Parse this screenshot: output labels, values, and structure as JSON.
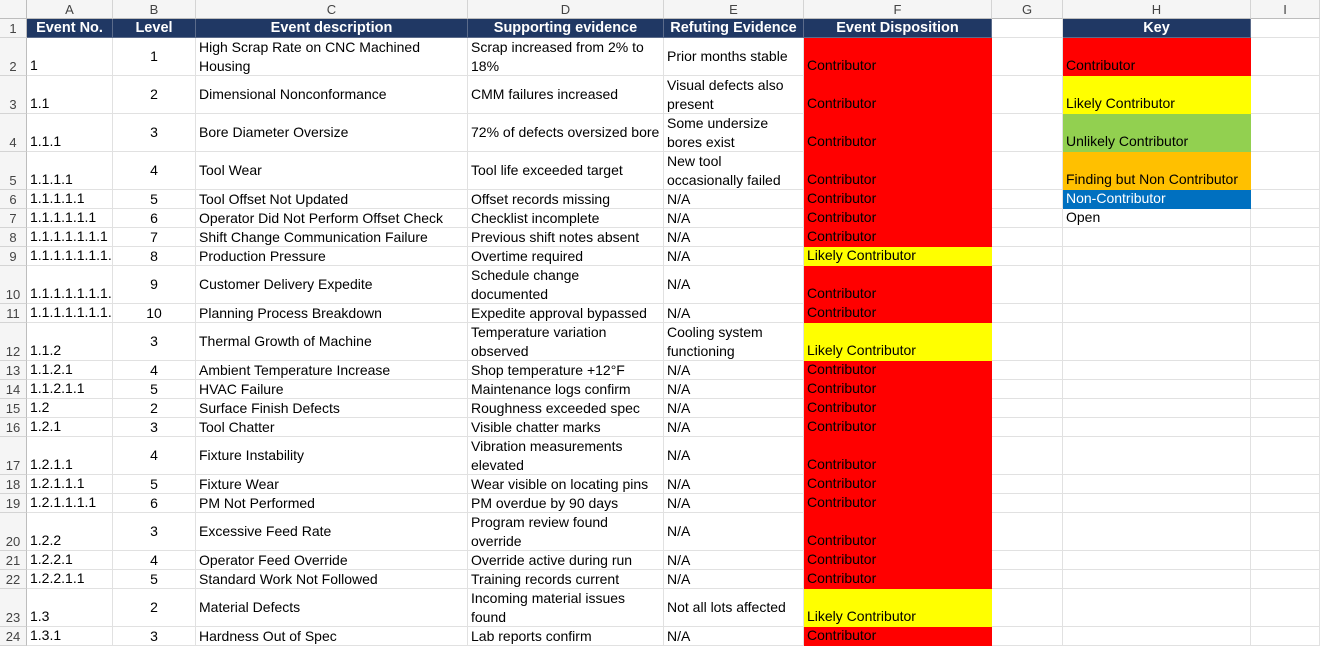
{
  "columns": [
    "A",
    "B",
    "C",
    "D",
    "E",
    "F",
    "G",
    "H",
    "I"
  ],
  "headers": {
    "event_no": "Event No.",
    "level": "Level",
    "description": "Event description",
    "supporting": "Supporting evidence",
    "refuting": "Refuting Evidence",
    "disposition": "Event Disposition",
    "key": "Key"
  },
  "rows": [
    {
      "n": "2",
      "event": "1",
      "level": "1",
      "desc": "High Scrap Rate on CNC Machined Housing",
      "sup": "Scrap increased from 2% to 18%",
      "ref": "Prior months stable",
      "disp": "Contributor",
      "color": "red"
    },
    {
      "n": "3",
      "event": "1.1",
      "level": "2",
      "desc": "Dimensional Nonconformance",
      "sup": "CMM failures increased",
      "ref": "Visual defects also present",
      "disp": "Contributor",
      "color": "red"
    },
    {
      "n": "4",
      "event": "1.1.1",
      "level": "3",
      "desc": "Bore Diameter Oversize",
      "sup": "72% of defects oversized bore",
      "ref": "Some undersize bores exist",
      "disp": "Contributor",
      "color": "red"
    },
    {
      "n": "5",
      "event": "1.1.1.1",
      "level": "4",
      "desc": "Tool Wear",
      "sup": "Tool life exceeded target",
      "ref": "New tool occasionally failed",
      "disp": "Contributor",
      "color": "red"
    },
    {
      "n": "6",
      "event": "1.1.1.1.1",
      "level": "5",
      "desc": "Tool Offset Not Updated",
      "sup": "Offset records missing",
      "ref": "N/A",
      "disp": "Contributor",
      "color": "red"
    },
    {
      "n": "7",
      "event": "1.1.1.1.1.1",
      "level": "6",
      "desc": "Operator Did Not Perform Offset Check",
      "sup": "Checklist incomplete",
      "ref": "N/A",
      "disp": "Contributor",
      "color": "red"
    },
    {
      "n": "8",
      "event": "1.1.1.1.1.1.1",
      "level": "7",
      "desc": "Shift Change Communication Failure",
      "sup": "Previous shift notes absent",
      "ref": "N/A",
      "disp": "Contributor",
      "color": "red"
    },
    {
      "n": "9",
      "event": "1.1.1.1.1.1.1.",
      "level": "8",
      "desc": "Production Pressure",
      "sup": "Overtime required",
      "ref": "N/A",
      "disp": "Likely Contributor",
      "color": "yellow"
    },
    {
      "n": "10",
      "event": "1.1.1.1.1.1.1.",
      "level": "9",
      "desc": "Customer Delivery Expedite",
      "sup": "Schedule change documented",
      "ref": "N/A",
      "disp": "Contributor",
      "color": "red"
    },
    {
      "n": "11",
      "event": "1.1.1.1.1.1.1.",
      "level": "10",
      "desc": "Planning Process Breakdown",
      "sup": "Expedite approval bypassed",
      "ref": "N/A",
      "disp": "Contributor",
      "color": "red"
    },
    {
      "n": "12",
      "event": "1.1.2",
      "level": "3",
      "desc": "Thermal Growth of Machine",
      "sup": "Temperature variation observed",
      "ref": "Cooling system functioning",
      "disp": "Likely Contributor",
      "color": "yellow"
    },
    {
      "n": "13",
      "event": "1.1.2.1",
      "level": "4",
      "desc": "Ambient Temperature Increase",
      "sup": "Shop temperature +12°F",
      "ref": "N/A",
      "disp": "Contributor",
      "color": "red"
    },
    {
      "n": "14",
      "event": "1.1.2.1.1",
      "level": "5",
      "desc": "HVAC Failure",
      "sup": "Maintenance logs confirm",
      "ref": "N/A",
      "disp": "Contributor",
      "color": "red"
    },
    {
      "n": "15",
      "event": "1.2",
      "level": "2",
      "desc": "Surface Finish Defects",
      "sup": "Roughness exceeded spec",
      "ref": "N/A",
      "disp": "Contributor",
      "color": "red"
    },
    {
      "n": "16",
      "event": "1.2.1",
      "level": "3",
      "desc": "Tool Chatter",
      "sup": "Visible chatter marks",
      "ref": "N/A",
      "disp": "Contributor",
      "color": "red"
    },
    {
      "n": "17",
      "event": "1.2.1.1",
      "level": "4",
      "desc": "Fixture Instability",
      "sup": "Vibration measurements elevated",
      "ref": "N/A",
      "disp": "Contributor",
      "color": "red"
    },
    {
      "n": "18",
      "event": "1.2.1.1.1",
      "level": "5",
      "desc": "Fixture Wear",
      "sup": "Wear visible on locating pins",
      "ref": "N/A",
      "disp": "Contributor",
      "color": "red"
    },
    {
      "n": "19",
      "event": "1.2.1.1.1.1",
      "level": "6",
      "desc": "PM Not Performed",
      "sup": "PM overdue by 90 days",
      "ref": "N/A",
      "disp": "Contributor",
      "color": "red"
    },
    {
      "n": "20",
      "event": "1.2.2",
      "level": "3",
      "desc": "Excessive Feed Rate",
      "sup": "Program review found override",
      "ref": "N/A",
      "disp": "Contributor",
      "color": "red"
    },
    {
      "n": "21",
      "event": "1.2.2.1",
      "level": "4",
      "desc": "Operator Feed Override",
      "sup": "Override active during run",
      "ref": "N/A",
      "disp": "Contributor",
      "color": "red"
    },
    {
      "n": "22",
      "event": "1.2.2.1.1",
      "level": "5",
      "desc": "Standard Work Not Followed",
      "sup": "Training records current",
      "ref": "N/A",
      "disp": "Contributor",
      "color": "red"
    },
    {
      "n": "23",
      "event": "1.3",
      "level": "2",
      "desc": "Material Defects",
      "sup": "Incoming material issues found",
      "ref": "Not all lots affected",
      "disp": "Likely Contributor",
      "color": "yellow"
    },
    {
      "n": "24",
      "event": "1.3.1",
      "level": "3",
      "desc": "Hardness Out of Spec",
      "sup": "Lab reports confirm",
      "ref": "N/A",
      "disp": "Contributor",
      "color": "red"
    }
  ],
  "key": [
    {
      "label": "Contributor",
      "color": "red"
    },
    {
      "label": "Likely Contributor",
      "color": "yellow"
    },
    {
      "label": "Unlikely Contributor",
      "color": "green"
    },
    {
      "label": "Finding but Non Contributor",
      "color": "orange"
    },
    {
      "label": "Non-Contributor",
      "color": "blue"
    },
    {
      "label": "Open",
      "color": "none"
    }
  ],
  "colors": {
    "header_bg": "#203864",
    "red": "#ff0000",
    "yellow": "#ffff00",
    "green": "#92d050",
    "orange": "#ffc000",
    "blue": "#0070c0"
  }
}
